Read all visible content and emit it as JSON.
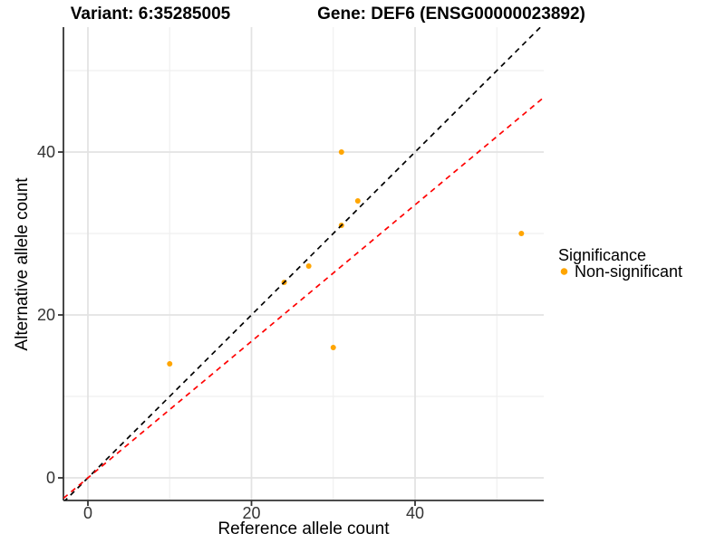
{
  "header": {
    "variant_title": "Variant: 6:35285005",
    "gene_title": "Gene: DEF6 (ENSG00000023892)"
  },
  "legend": {
    "title": "Significance",
    "items": [
      {
        "label": "Non-significant",
        "color": "#FFA500"
      }
    ]
  },
  "chart_data": {
    "type": "scatter",
    "xlabel": "Reference allele count",
    "ylabel": "Alternative allele count",
    "x_ticks": [
      0,
      20,
      40
    ],
    "y_ticks": [
      0,
      20,
      40
    ],
    "x_minor_ticks": [
      10,
      30,
      50
    ],
    "y_minor_ticks": [
      10,
      30,
      50
    ],
    "xlim": [
      -3,
      55.7
    ],
    "ylim": [
      -2.8,
      55.3
    ],
    "series": [
      {
        "name": "Non-significant",
        "color": "#FFA500",
        "points": [
          {
            "x": 10,
            "y": 14
          },
          {
            "x": 24,
            "y": 24
          },
          {
            "x": 27,
            "y": 26
          },
          {
            "x": 30,
            "y": 16
          },
          {
            "x": 31,
            "y": 31
          },
          {
            "x": 31,
            "y": 40
          },
          {
            "x": 33,
            "y": 34
          },
          {
            "x": 53,
            "y": 30
          }
        ]
      }
    ],
    "reference_lines": [
      {
        "name": "identity-line",
        "slope": 1,
        "intercept": 0,
        "color": "#000000",
        "style": "dashed"
      },
      {
        "name": "fitted-ratio-line",
        "slope": 0.838,
        "intercept": 0,
        "color": "#FF0000",
        "style": "dashed"
      }
    ],
    "grid": true,
    "legend_position": "right"
  },
  "colors": {
    "point": "#FFA500",
    "identity_line": "#000000",
    "fit_line": "#FF0000",
    "grid_major": "#E3E3E3",
    "grid_minor": "#EFEFEF",
    "axis_line": "#333333",
    "tick_text": "#333333"
  }
}
